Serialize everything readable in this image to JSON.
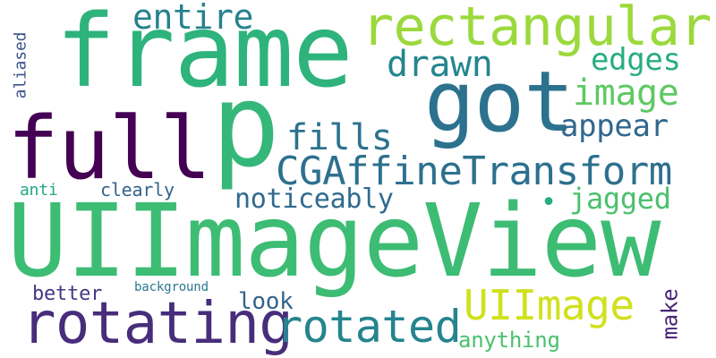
{
  "words": [
    {
      "id": "uiimageview",
      "text": "UIImageView",
      "color": "#3dbc74"
    },
    {
      "id": "frame",
      "text": "frame",
      "color": "#2eb37c"
    },
    {
      "id": "full",
      "text": "full",
      "color": "#440154"
    },
    {
      "id": "p",
      "text": "p",
      "color": "#35b779"
    },
    {
      "id": "got",
      "text": "got",
      "color": "#2c728e"
    },
    {
      "id": "rectangular",
      "text": "rectangular",
      "color": "#9bd93c"
    },
    {
      "id": "cgaffinetransform",
      "text": "CGAffineTransform",
      "color": "#2d708e"
    },
    {
      "id": "rotating",
      "text": "rotating",
      "color": "#472d7b"
    },
    {
      "id": "rotated",
      "text": "rotated",
      "color": "#25848e"
    },
    {
      "id": "uiimage",
      "text": "UIImage",
      "color": "#d0e11c"
    },
    {
      "id": "entire",
      "text": "entire",
      "color": "#26828e"
    },
    {
      "id": "drawn",
      "text": "drawn",
      "color": "#24868e"
    },
    {
      "id": "edges",
      "text": "edges",
      "color": "#27ad81"
    },
    {
      "id": "image",
      "text": "image",
      "color": "#5ec962"
    },
    {
      "id": "fills",
      "text": "fills",
      "color": "#2c728e"
    },
    {
      "id": "appear",
      "text": "appear",
      "color": "#31688e"
    },
    {
      "id": "noticeably",
      "text": "noticeably",
      "color": "#306a8e"
    },
    {
      "id": "jagged",
      "text": "jagged",
      "color": "#4ac16d"
    },
    {
      "id": "dot",
      "text": "•",
      "color": "#27ad81"
    },
    {
      "id": "anti",
      "text": "anti",
      "color": "#22a785"
    },
    {
      "id": "clearly",
      "text": "clearly",
      "color": "#33638d"
    },
    {
      "id": "aliased",
      "text": "aliased",
      "color": "#3b528b"
    },
    {
      "id": "better",
      "text": "better",
      "color": "#443983"
    },
    {
      "id": "background",
      "text": "background",
      "color": "#2a788e"
    },
    {
      "id": "look",
      "text": "look",
      "color": "#33638d"
    },
    {
      "id": "anything",
      "text": "anything",
      "color": "#4ac16d"
    },
    {
      "id": "make",
      "text": "make",
      "color": "#482475"
    }
  ]
}
